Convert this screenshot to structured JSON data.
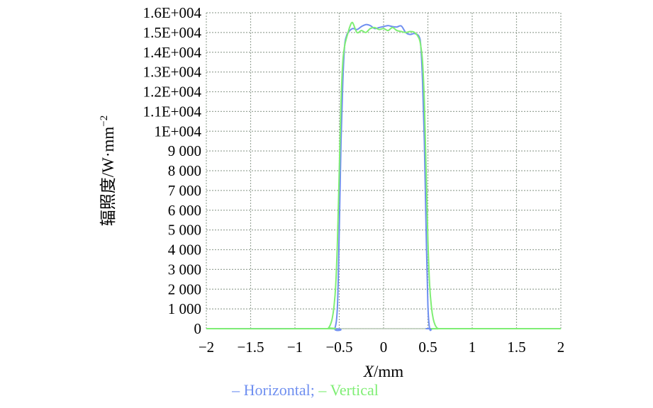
{
  "chart_data": {
    "type": "line",
    "title": "",
    "xlabel_var": "X",
    "xlabel_unit": "/mm",
    "ylabel": "辐照度/W·mm",
    "ylabel_sup": "−2",
    "xlim": [
      -2,
      2
    ],
    "ylim": [
      0,
      16000
    ],
    "x_ticks": [
      -2,
      -1.5,
      -1,
      -0.5,
      0,
      0.5,
      1,
      1.5,
      2
    ],
    "x_tick_labels": [
      "−2",
      "−1.5",
      "−1",
      "−0.5",
      "0",
      "0.5",
      "1",
      "1.5",
      "2"
    ],
    "y_ticks": [
      0,
      1000,
      2000,
      3000,
      4000,
      5000,
      6000,
      7000,
      8000,
      9000,
      10000,
      11000,
      12000,
      13000,
      14000,
      15000,
      16000
    ],
    "y_tick_labels": [
      "0",
      "1 000",
      "2 000",
      "3 000",
      "4 000",
      "5 000",
      "6 000",
      "7 000",
      "8 000",
      "9 000",
      "1E+004",
      "1.1E+004",
      "1.2E+004",
      "1.3E+004",
      "1.4E+004",
      "1.5E+004",
      "1.6E+004"
    ],
    "grid": true,
    "legend_position": "bottom",
    "series": [
      {
        "name": "Horizontal",
        "color": "#6f8ff0",
        "x": [
          -2,
          -0.6,
          -0.55,
          -0.52,
          -0.5,
          -0.48,
          -0.46,
          -0.44,
          -0.42,
          -0.4,
          -0.35,
          -0.3,
          -0.25,
          -0.2,
          -0.15,
          -0.1,
          -0.05,
          0,
          0.05,
          0.1,
          0.15,
          0.2,
          0.25,
          0.3,
          0.35,
          0.4,
          0.42,
          0.44,
          0.46,
          0.48,
          0.5,
          0.52,
          0.55,
          0.6,
          2
        ],
        "y": [
          0,
          0,
          0,
          1200,
          5000,
          9500,
          12500,
          14300,
          14800,
          15000,
          15200,
          15150,
          15300,
          15400,
          15350,
          15200,
          15250,
          15300,
          15350,
          15300,
          15280,
          15330,
          15000,
          14900,
          14950,
          14800,
          14300,
          12500,
          9500,
          5000,
          1200,
          0,
          0,
          0,
          0
        ]
      },
      {
        "name": "Vertical",
        "color": "#7fee74",
        "x": [
          -2,
          -0.65,
          -0.62,
          -0.6,
          -0.58,
          -0.56,
          -0.54,
          -0.52,
          -0.5,
          -0.48,
          -0.46,
          -0.44,
          -0.42,
          -0.4,
          -0.38,
          -0.35,
          -0.3,
          -0.25,
          -0.2,
          -0.15,
          -0.1,
          -0.05,
          0,
          0.05,
          0.1,
          0.15,
          0.2,
          0.25,
          0.3,
          0.35,
          0.4,
          0.42,
          0.44,
          0.46,
          0.48,
          0.5,
          0.52,
          0.54,
          0.56,
          0.58,
          0.6,
          0.62,
          0.65,
          2
        ],
        "y": [
          0,
          0,
          50,
          200,
          500,
          1100,
          2200,
          4500,
          8000,
          11500,
          13500,
          14300,
          14700,
          15000,
          15300,
          15500,
          15000,
          15100,
          15000,
          15200,
          15250,
          15150,
          15200,
          15100,
          15250,
          15100,
          15050,
          15000,
          15050,
          15000,
          14700,
          14300,
          13500,
          11500,
          8000,
          4500,
          2200,
          1100,
          500,
          200,
          50,
          0,
          0,
          0
        ]
      }
    ]
  },
  "legend": {
    "dash": "–",
    "horizontal_label": "Horizontal;",
    "vertical_label": "Vertical"
  }
}
